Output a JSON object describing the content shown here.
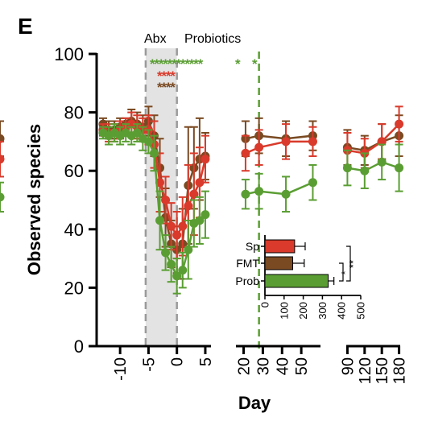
{
  "panel_label": "E",
  "chart_data": {
    "type": "line",
    "ylabel": "Observed species",
    "xlabel": "Day",
    "ylim": [
      0,
      100
    ],
    "yticks": [
      0,
      20,
      40,
      60,
      80,
      100
    ],
    "x_segments": [
      {
        "range": [
          -13,
          6
        ],
        "ticks": [
          -10,
          -5,
          0,
          5
        ],
        "tick_labels": [
          "-10",
          "-5",
          "0",
          "5"
        ]
      },
      {
        "range": [
          16,
          60
        ],
        "ticks": [
          20,
          30,
          40,
          50
        ],
        "tick_labels": [
          "20",
          "30",
          "40",
          "50"
        ]
      },
      {
        "range": [
          88,
          182
        ],
        "ticks": [
          90,
          120,
          150,
          180
        ],
        "tick_labels": [
          "90",
          "120",
          "150",
          "180"
        ]
      }
    ],
    "shaded_region": {
      "x": [
        -5.5,
        0
      ],
      "label_abx": "Abx",
      "label_probiotics": "Probiotics"
    },
    "probiotics_end_day": 28,
    "colors": {
      "Sp": "#d93a2b",
      "FMT": "#7a4a22",
      "Prob": "#5a9e33",
      "shade": "#e3e3e3"
    },
    "significance": {
      "green": "************",
      "green_late": [
        "*",
        "*"
      ],
      "red": "****",
      "brown": "****"
    },
    "series": [
      {
        "key": "FMT",
        "x": [
          -13,
          -12,
          -11,
          -10,
          -9,
          -8,
          -7,
          -6,
          -5,
          -4,
          -3,
          -2,
          -1,
          0,
          1,
          2,
          3,
          4,
          5,
          14,
          21,
          28,
          42,
          56,
          90,
          120,
          150,
          180
        ],
        "y": [
          76,
          74,
          74,
          75,
          76,
          77,
          76,
          75,
          77,
          72,
          61,
          44,
          35,
          33,
          35,
          55,
          61,
          64,
          65,
          71,
          71,
          72,
          71,
          72,
          68,
          67,
          70,
          72
        ],
        "err": [
          2,
          3,
          3,
          3,
          2,
          4,
          4,
          4,
          5,
          7,
          10,
          10,
          8,
          8,
          12,
          20,
          14,
          14,
          8,
          6,
          6,
          6,
          6,
          5,
          6,
          5,
          6,
          7
        ]
      },
      {
        "key": "Sp",
        "x": [
          -13,
          -12,
          -11,
          -10,
          -9,
          -8,
          -7,
          -6,
          -5,
          -4,
          -3,
          -2,
          -1,
          0,
          1,
          2,
          3,
          4,
          5,
          14,
          21,
          28,
          42,
          56,
          90,
          120,
          150,
          180
        ],
        "y": [
          74,
          73,
          73,
          74,
          75,
          76,
          75,
          74,
          74,
          69,
          56,
          50,
          41,
          38,
          41,
          48,
          52,
          56,
          64,
          64,
          66,
          68,
          70,
          70,
          67,
          66,
          70,
          76
        ],
        "err": [
          2,
          3,
          3,
          3,
          3,
          4,
          4,
          4,
          5,
          8,
          10,
          8,
          8,
          8,
          10,
          14,
          14,
          12,
          8,
          6,
          6,
          6,
          6,
          5,
          6,
          5,
          6,
          6
        ]
      },
      {
        "key": "Prob",
        "x": [
          -13,
          -12,
          -11,
          -10,
          -9,
          -8,
          -7,
          -6,
          -5,
          -4,
          -3,
          -2,
          -1,
          0,
          1,
          2,
          3,
          4,
          5,
          14,
          21,
          28,
          42,
          56,
          90,
          120,
          150,
          180
        ],
        "y": [
          73,
          72,
          73,
          72,
          73,
          72,
          73,
          71,
          70,
          66,
          43,
          32,
          28,
          24,
          26,
          33,
          42,
          43,
          45,
          51,
          52,
          53,
          52,
          56,
          61,
          60,
          63,
          61
        ],
        "err": [
          2,
          3,
          3,
          3,
          3,
          3,
          3,
          4,
          4,
          6,
          10,
          6,
          6,
          6,
          6,
          10,
          8,
          8,
          8,
          5,
          5,
          6,
          6,
          6,
          6,
          6,
          6,
          8
        ]
      }
    ],
    "inset": {
      "type": "bar",
      "orientation": "horizontal",
      "categories": [
        "Sp",
        "FMT",
        "Prob"
      ],
      "values": [
        155,
        145,
        330
      ],
      "errors": [
        55,
        60,
        30
      ],
      "xlim": [
        0,
        500
      ],
      "xticks": [
        0,
        100,
        200,
        300,
        400,
        500
      ],
      "significance": [
        "*",
        "**"
      ]
    }
  }
}
